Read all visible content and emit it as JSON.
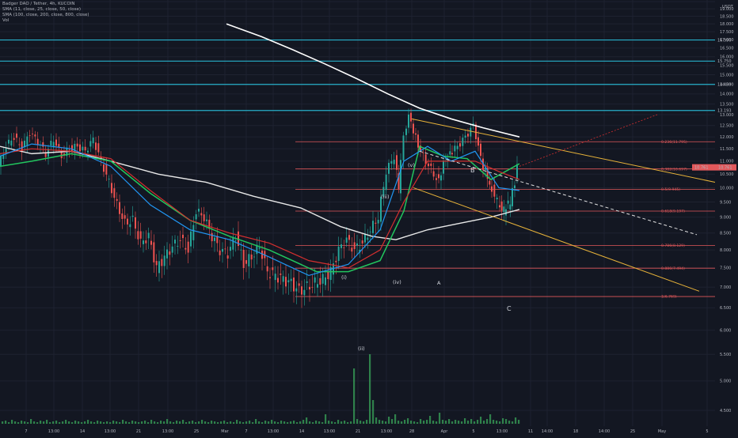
{
  "header": {
    "title": "Badger DAO / Tether, 4h, KUCOIN",
    "indicators": [
      "SMA (11, close, 25, close, 50, close)",
      "SMA (100, close, 200, close, 800, close)",
      "Vol"
    ]
  },
  "currency": "USDT",
  "price_badge": "10.761",
  "colors": {
    "background": "#131722",
    "up": "#26a69a",
    "down": "#ef5350",
    "resistance": "#27b0c9",
    "fib": "#e2585b",
    "channel": "#e8b339",
    "sma_white": "#ffffff",
    "sma_green": "#22c55e",
    "sma_blue": "#2196f3",
    "sma_red": "#d32f2f",
    "volume": "#3aa55a",
    "badge": "#e2585b"
  },
  "chart_data": {
    "type": "candlestick",
    "ylim": [
      4.5,
      19.5
    ],
    "y_scale": "log",
    "yticks": [
      "19.500",
      "19.000",
      "18.500",
      "18.000",
      "17.500",
      "17.000",
      "16.500",
      "16.000",
      "15.500",
      "15.000",
      "14.500",
      "14.000",
      "13.500",
      "13.000",
      "12.500",
      "12.000",
      "11.500",
      "11.000",
      "10.500",
      "10.000",
      "9.500",
      "9.000",
      "8.500",
      "8.000",
      "7.500",
      "7.000",
      "6.500",
      "6.000",
      "5.500",
      "5.000",
      "4.500"
    ],
    "xticks": [
      "7",
      "13:00",
      "14",
      "13:00",
      "21",
      "13:00",
      "25",
      "Mar",
      "7",
      "13:00",
      "14",
      "13:00",
      "21",
      "13:00",
      "28",
      "Apr",
      "5",
      "13:00",
      "11",
      "14:00",
      "18",
      "14:00",
      "25",
      "May",
      "5"
    ],
    "resistance_levels": [
      {
        "value": 16.99,
        "label": "16.990"
      },
      {
        "value": 15.75,
        "label": "15.750"
      },
      {
        "value": 14.489,
        "label": "14.489"
      },
      {
        "value": 13.193,
        "label": "13.193"
      }
    ],
    "fibonacci": [
      {
        "ratio": "0.236",
        "value": 11.795
      },
      {
        "ratio": "0.382",
        "value": 10.697
      },
      {
        "ratio": "0.5",
        "value": 9.945
      },
      {
        "ratio": "0.618",
        "value": 9.197
      },
      {
        "ratio": "0.786",
        "value": 8.129
      },
      {
        "ratio": "0.886",
        "value": 7.494
      },
      {
        "ratio": "1",
        "value": 6.769
      }
    ],
    "wave_labels": [
      "(i)",
      "(ii)",
      "(iii)",
      "(iv)",
      "(v)",
      "A",
      "B",
      "C"
    ],
    "trend_points": {
      "price_path": [
        [
          0,
          10.8
        ],
        [
          10,
          11.6
        ],
        [
          20,
          12.0
        ],
        [
          30,
          11.5
        ],
        [
          40,
          12.2
        ],
        [
          50,
          11.8
        ],
        [
          60,
          11.3
        ],
        [
          70,
          11.9
        ],
        [
          80,
          11.2
        ],
        [
          90,
          11.5
        ],
        [
          100,
          11.6
        ],
        [
          110,
          11.4
        ],
        [
          120,
          11.9
        ],
        [
          130,
          11.0
        ],
        [
          140,
          10.2
        ],
        [
          150,
          9.4
        ],
        [
          160,
          8.8
        ],
        [
          170,
          8.9
        ],
        [
          180,
          8.2
        ],
        [
          190,
          8.4
        ],
        [
          200,
          7.5
        ],
        [
          210,
          7.8
        ],
        [
          220,
          8.1
        ],
        [
          230,
          8.3
        ],
        [
          240,
          8.0
        ],
        [
          250,
          9.2
        ],
        [
          260,
          9.0
        ],
        [
          270,
          8.4
        ],
        [
          280,
          8.0
        ],
        [
          290,
          7.9
        ],
        [
          300,
          8.4
        ],
        [
          310,
          7.6
        ],
        [
          320,
          7.8
        ],
        [
          330,
          8.1
        ],
        [
          340,
          7.4
        ],
        [
          350,
          7.3
        ],
        [
          360,
          7.2
        ],
        [
          370,
          7.1
        ],
        [
          380,
          6.9
        ],
        [
          390,
          7.0
        ],
        [
          400,
          7.1
        ],
        [
          410,
          7.2
        ],
        [
          420,
          7.4
        ],
        [
          430,
          8.0
        ],
        [
          440,
          8.3
        ],
        [
          450,
          8.0
        ],
        [
          460,
          8.2
        ],
        [
          470,
          8.6
        ],
        [
          480,
          9.0
        ],
        [
          490,
          10.6
        ],
        [
          500,
          11.2
        ],
        [
          505,
          9.9
        ],
        [
          512,
          12.0
        ],
        [
          518,
          13.0
        ],
        [
          524,
          12.3
        ],
        [
          530,
          11.6
        ],
        [
          540,
          11.0
        ],
        [
          550,
          10.5
        ],
        [
          556,
          10.2
        ],
        [
          562,
          11.0
        ],
        [
          570,
          11.3
        ],
        [
          580,
          11.6
        ],
        [
          590,
          12.0
        ],
        [
          600,
          12.5
        ],
        [
          606,
          11.6
        ],
        [
          612,
          10.8
        ],
        [
          620,
          10.2
        ],
        [
          630,
          9.5
        ],
        [
          638,
          9.2
        ],
        [
          646,
          9.5
        ],
        [
          652,
          10.2
        ],
        [
          656,
          10.8
        ]
      ]
    }
  }
}
